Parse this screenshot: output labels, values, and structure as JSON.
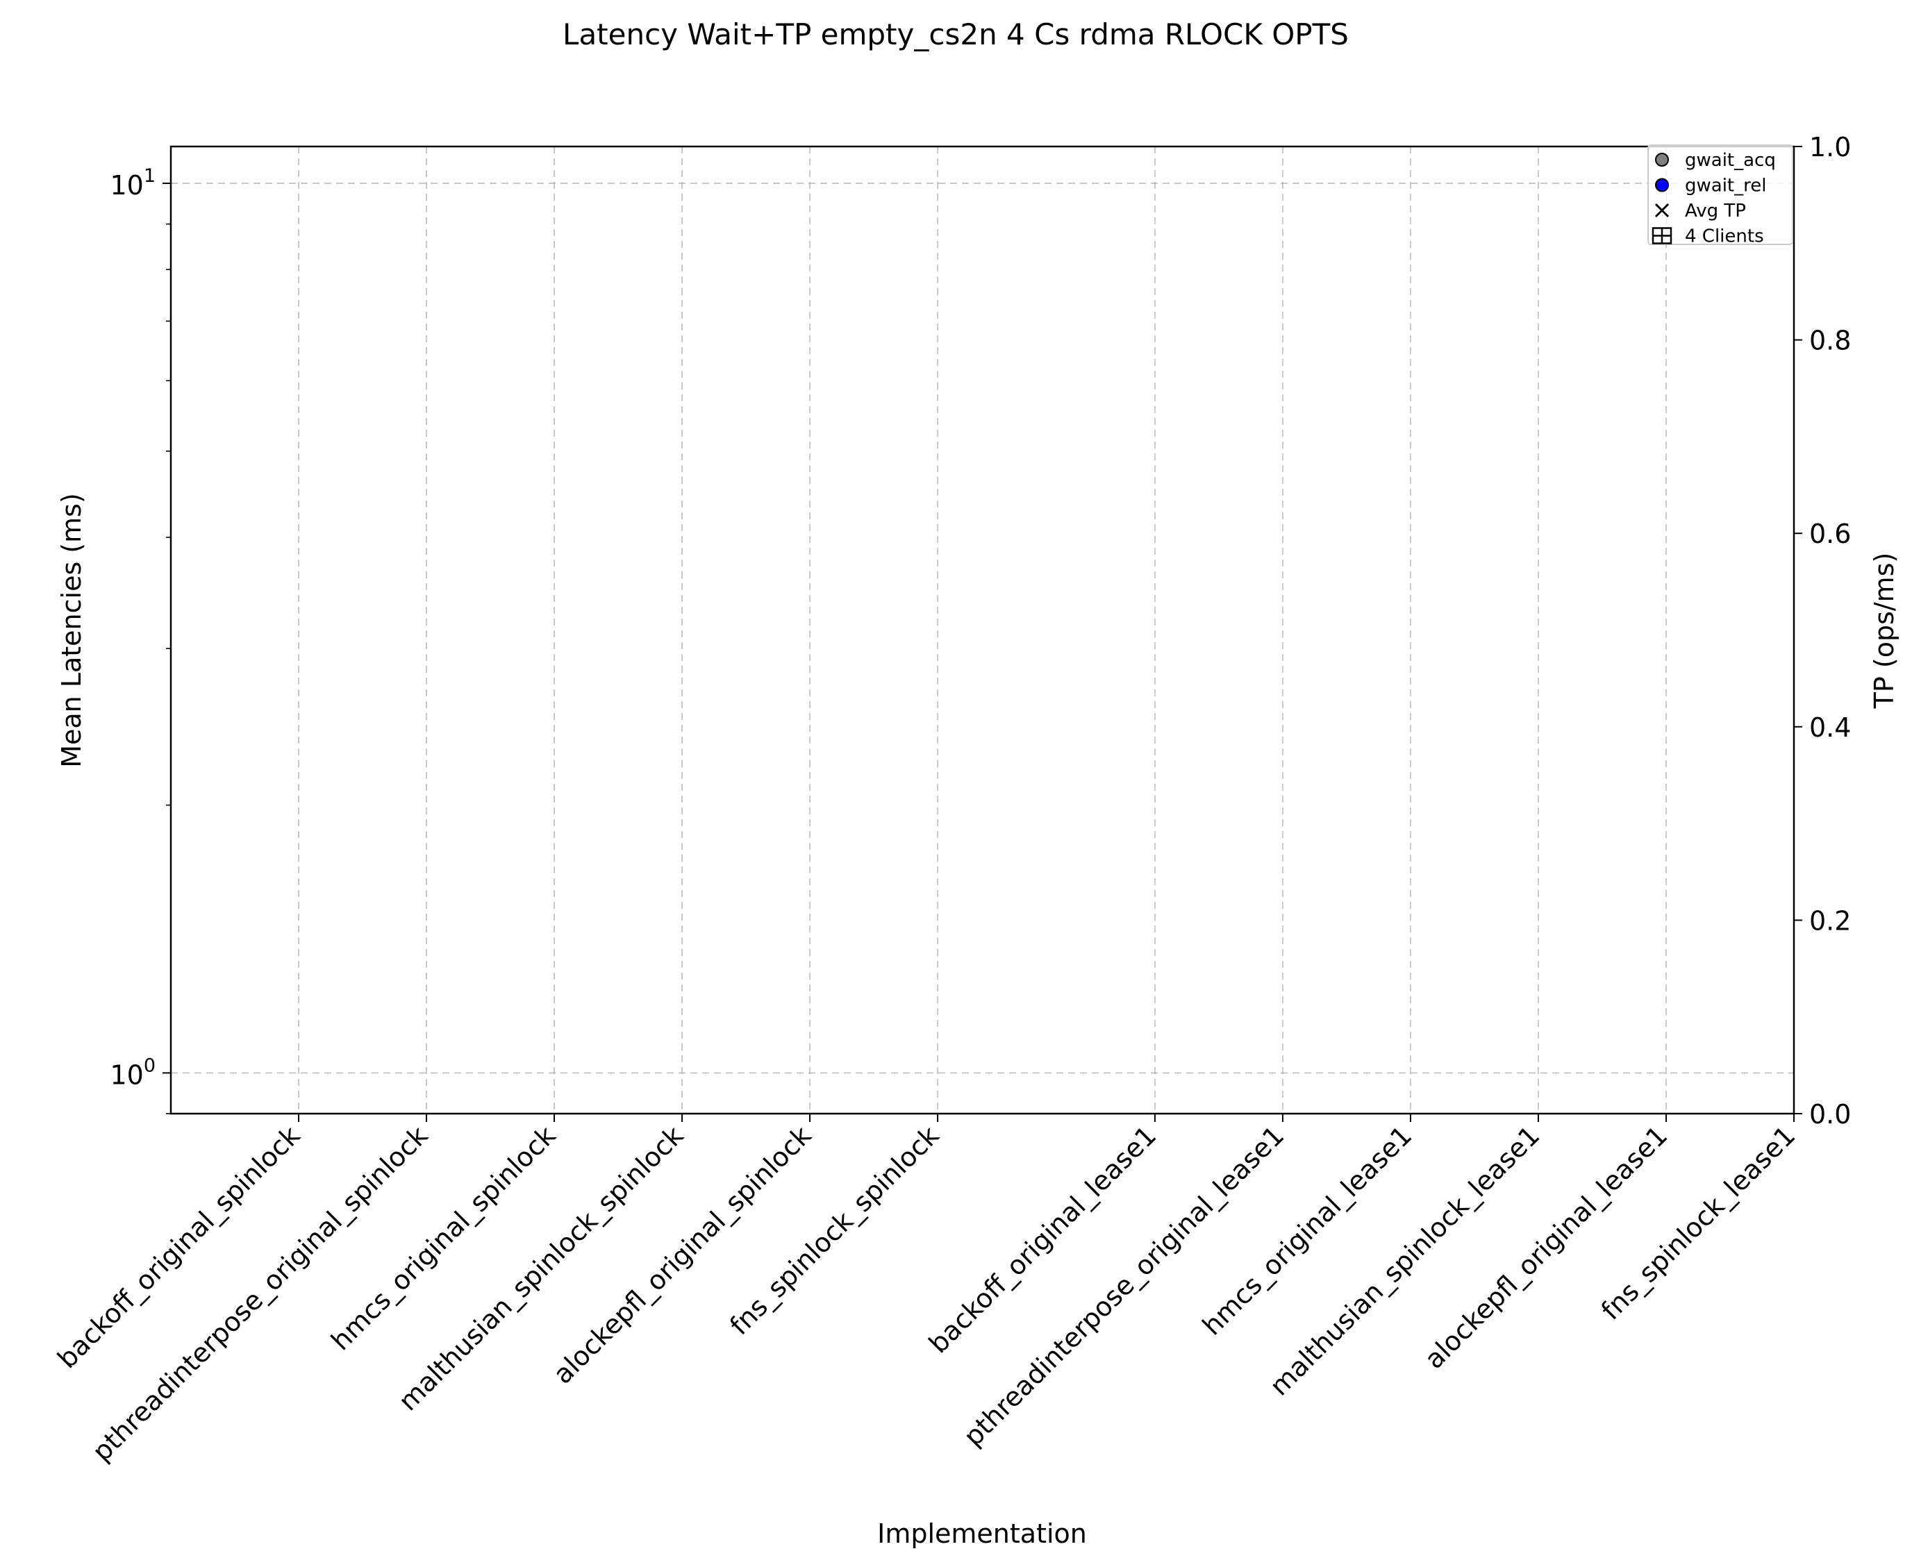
{
  "chart_data": {
    "type": "scatter",
    "title": "Latency Wait+TP empty_cs2n 4 Cs rdma RLOCK OPTS",
    "xlabel": "Implementation",
    "ylabel": "Mean Latencies (ms)",
    "y2label": "TP (ops/ms)",
    "categories": [
      "backoff_original_spinlock",
      "pthreadinterpose_original_spinlock",
      "hmcs_original_spinlock",
      "malthusian_spinlock_spinlock",
      "alockepfl_original_spinlock",
      "fns_spinlock_spinlock",
      "backoff_original_lease1",
      "pthreadinterpose_original_lease1",
      "hmcs_original_lease1",
      "malthusian_spinlock_lease1",
      "alockepfl_original_lease1",
      "fns_spinlock_lease1"
    ],
    "category_positions": [
      0,
      1,
      2,
      3,
      4,
      5,
      6.7,
      7.7,
      8.7,
      9.7,
      10.7,
      11.7
    ],
    "xlim": [
      -1,
      11.7
    ],
    "y_scale": "log",
    "ylim": [
      0.9,
      11
    ],
    "y_ticks": [
      {
        "value": 1,
        "base": "10",
        "exp": "0"
      },
      {
        "value": 10,
        "base": "10",
        "exp": "1"
      }
    ],
    "y2lim": [
      0,
      1
    ],
    "y2_ticks": [
      "0.0",
      "0.2",
      "0.4",
      "0.6",
      "0.8",
      "1.0"
    ],
    "grid": true,
    "legend_position": "top-right",
    "series": [
      {
        "name": "gwait_acq",
        "marker": "circle",
        "color": "#808080",
        "values": []
      },
      {
        "name": "gwait_rel",
        "marker": "circle",
        "color": "#0000ff",
        "values": []
      },
      {
        "name": "Avg TP",
        "marker": "x",
        "color": "#000000",
        "values": []
      },
      {
        "name": "4 Clients",
        "marker": "box",
        "color": "#ffffff",
        "values": []
      }
    ]
  }
}
